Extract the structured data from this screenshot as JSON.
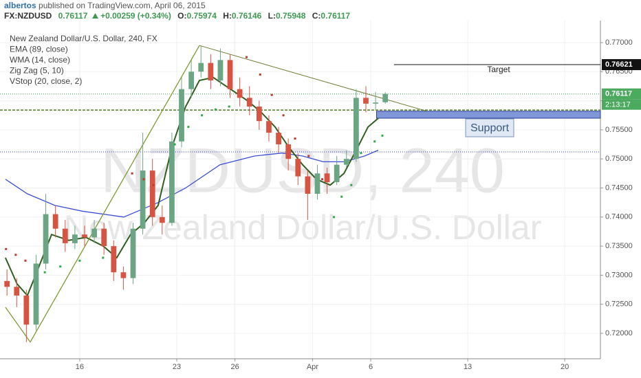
{
  "header": {
    "author": "albertos",
    "published": " published on TradingView.com, April 06, 2015",
    "symbol": "FX:NZDUSD",
    "last": 0.76117,
    "change": "+0.00259 (+0.34%)",
    "ohlc_labels": [
      "O:",
      "H:",
      "L:",
      "C:"
    ],
    "ohlc": [
      0.75974,
      0.76146,
      0.75948,
      0.76117
    ]
  },
  "chart_data": {
    "type": "candlestick",
    "legend_title": "New Zealand Dollar/U.S. Dollar, 240, FX",
    "watermark": [
      "NZDUSD, 240",
      "New Zealand Dollar/U.S. Dollar"
    ],
    "up_color": "#6ba583",
    "down_color": "#d75442",
    "xlim": [
      -4.11,
      26.84
    ],
    "ylim": [
      0.71563,
      0.77378
    ],
    "xticks": [
      {
        "value": 0,
        "label": "16"
      },
      {
        "value": 5,
        "label": "23"
      },
      {
        "value": 8,
        "label": "26"
      },
      {
        "value": 12,
        "label": "Apr"
      },
      {
        "value": 15,
        "label": "6"
      },
      {
        "value": 20,
        "label": "13"
      },
      {
        "value": 25,
        "label": "20"
      }
    ],
    "yticks": [
      {
        "value": 0.72,
        "label": "0.72000"
      },
      {
        "value": 0.725,
        "label": "0.72500"
      },
      {
        "value": 0.73,
        "label": "0.73000"
      },
      {
        "value": 0.735,
        "label": "0.73500"
      },
      {
        "value": 0.74,
        "label": "0.74000"
      },
      {
        "value": 0.745,
        "label": "0.74500"
      },
      {
        "value": 0.75,
        "label": "0.75000"
      },
      {
        "value": 0.755,
        "label": "0.75500"
      },
      {
        "value": 0.76,
        "label": "0.76000"
      },
      {
        "value": 0.765,
        "label": "0.76500"
      },
      {
        "value": 0.77,
        "label": "0.77000"
      }
    ],
    "grid": true,
    "candles": {
      "x": [
        -3.75,
        -3.25,
        -2.75,
        -2.25,
        -1.75,
        -1.25,
        -0.75,
        -0.25,
        0.25,
        0.75,
        1.25,
        1.75,
        2.25,
        2.75,
        3.25,
        3.75,
        4.25,
        4.75,
        5.25,
        5.75,
        6.25,
        6.75,
        7.25,
        7.75,
        8.25,
        8.75,
        9.25,
        9.75,
        10.25,
        10.75,
        11.25,
        11.75,
        12.25,
        12.75,
        13.25,
        13.75,
        14.25,
        14.75,
        15.25,
        15.75
      ],
      "open": [
        0.729,
        0.728,
        0.7265,
        0.7215,
        0.732,
        0.7405,
        0.738,
        0.7355,
        0.737,
        0.7365,
        0.738,
        0.735,
        0.7305,
        0.7295,
        0.738,
        0.748,
        0.74,
        0.739,
        0.753,
        0.762,
        0.765,
        0.7665,
        0.7635,
        0.767,
        0.762,
        0.7605,
        0.759,
        0.7565,
        0.7545,
        0.7525,
        0.75,
        0.747,
        0.744,
        0.7475,
        0.746,
        0.749,
        0.75,
        0.7605,
        0.7595,
        0.75974
      ],
      "high": [
        0.731,
        0.7295,
        0.7275,
        0.7335,
        0.744,
        0.742,
        0.7395,
        0.7385,
        0.7385,
        0.7395,
        0.739,
        0.736,
        0.7315,
        0.739,
        0.7545,
        0.75,
        0.742,
        0.7545,
        0.764,
        0.767,
        0.7695,
        0.768,
        0.769,
        0.768,
        0.764,
        0.7625,
        0.76,
        0.7575,
        0.7555,
        0.7535,
        0.751,
        0.748,
        0.749,
        0.7485,
        0.7505,
        0.7515,
        0.762,
        0.7625,
        0.7615,
        0.76146
      ],
      "low": [
        0.7265,
        0.7245,
        0.7185,
        0.7205,
        0.731,
        0.7365,
        0.734,
        0.7345,
        0.735,
        0.7355,
        0.7335,
        0.729,
        0.7275,
        0.7285,
        0.737,
        0.7385,
        0.737,
        0.7385,
        0.752,
        0.7605,
        0.764,
        0.762,
        0.7625,
        0.7605,
        0.759,
        0.7575,
        0.755,
        0.753,
        0.751,
        0.748,
        0.7455,
        0.7395,
        0.743,
        0.744,
        0.7455,
        0.7485,
        0.7495,
        0.758,
        0.7585,
        0.75948
      ],
      "close": [
        0.728,
        0.7265,
        0.7215,
        0.732,
        0.7405,
        0.738,
        0.7355,
        0.737,
        0.7365,
        0.738,
        0.735,
        0.7305,
        0.7295,
        0.738,
        0.748,
        0.74,
        0.739,
        0.753,
        0.762,
        0.765,
        0.7665,
        0.7635,
        0.767,
        0.762,
        0.7605,
        0.759,
        0.7565,
        0.7545,
        0.7525,
        0.75,
        0.747,
        0.744,
        0.7475,
        0.746,
        0.749,
        0.75,
        0.7605,
        0.7595,
        0.7597,
        0.76117
      ]
    },
    "indicators": [
      {
        "name": "EMA (89, close)",
        "color": "#3b4fd6",
        "x": [
          -3.83,
          -2.7,
          -1.28,
          0.14,
          2.27,
          4.04,
          5.46,
          7.23,
          9.01,
          10.43,
          11.49,
          12.55,
          13.62,
          14.68,
          15.39
        ],
        "values": [
          0.7465,
          0.744,
          0.742,
          0.741,
          0.74,
          0.7425,
          0.745,
          0.749,
          0.7505,
          0.751,
          0.7505,
          0.7495,
          0.7495,
          0.7505,
          0.7515
        ]
      },
      {
        "name": "WMA (14, close)",
        "color": "#2f5e1e",
        "x": [
          -3.83,
          -3.23,
          -2.7,
          -2.16,
          -1.45,
          -0.57,
          0.32,
          1.21,
          1.91,
          2.62,
          3.33,
          4.04,
          4.75,
          5.46,
          6.17,
          6.88,
          7.77,
          8.65,
          9.36,
          10.07,
          10.78,
          11.49,
          12.2,
          12.91,
          13.62,
          14.33,
          14.86,
          15.39
        ],
        "values": [
          0.733,
          0.7285,
          0.7265,
          0.731,
          0.737,
          0.736,
          0.7365,
          0.735,
          0.733,
          0.737,
          0.739,
          0.742,
          0.752,
          0.759,
          0.7635,
          0.764,
          0.762,
          0.76,
          0.758,
          0.7555,
          0.752,
          0.749,
          0.7465,
          0.7455,
          0.7475,
          0.752,
          0.7555,
          0.757
        ]
      },
      {
        "name": "Zig Zag (5, 10)",
        "color": "#7d9a2e",
        "x": [
          -3.83,
          -2.55,
          6.17
        ],
        "values": [
          0.7245,
          0.7185,
          0.7695
        ]
      }
    ],
    "trendline": {
      "color": "#6b7a2e",
      "x": [
        6.17,
        17.9
      ],
      "values": [
        0.7695,
        0.7582
      ]
    },
    "vstop": {
      "name": "VStop (20, close, 2)",
      "up": {
        "color": "#2fa84a",
        "x": [
          -1.8,
          -1,
          0,
          1.2,
          4.9,
          5.6,
          6.3,
          7,
          7.7,
          13.1,
          13.5,
          14,
          14.5,
          15.2,
          15.6
        ],
        "values": [
          0.7305,
          0.7315,
          0.7325,
          0.733,
          0.7525,
          0.7555,
          0.7575,
          0.7585,
          0.759,
          0.74,
          0.7435,
          0.7455,
          0.751,
          0.753,
          0.754
        ]
      },
      "down": {
        "color": "#c0392b",
        "x": [
          -3.8,
          -3.3,
          -2.8,
          2.7,
          3.3,
          3.8,
          8.6,
          9.3,
          9.9,
          10.5,
          11.1,
          11.8,
          12.5
        ],
        "values": [
          0.7345,
          0.7335,
          0.7325,
          0.7475,
          0.7465,
          0.7455,
          0.7675,
          0.7645,
          0.761,
          0.7575,
          0.7535,
          0.7505,
          0.7465
        ]
      }
    },
    "levels": [
      {
        "value": 0.76117,
        "color": "#3f9a52",
        "dash": "1,2"
      },
      {
        "value": 0.7584,
        "color": "#4e7a1e",
        "dash": "4,2"
      },
      {
        "value": 0.7512,
        "color": "#2b3fd0",
        "dash": "1,2"
      }
    ],
    "target": {
      "label": "Target",
      "value": 0.76621,
      "x_start": 16.2
    },
    "support": {
      "label": "Support",
      "top": 0.7582,
      "bottom": 0.757,
      "x_start": 15.3
    },
    "countdown": "2:13:17"
  }
}
